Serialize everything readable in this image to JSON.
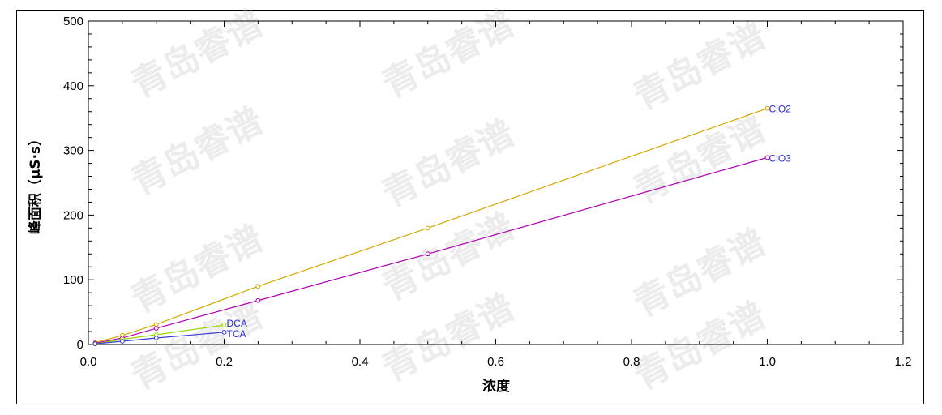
{
  "chart_data": {
    "type": "line",
    "title": "",
    "xlabel": "浓度",
    "ylabel": "峰面积（μS·s）",
    "xlim": [
      0,
      1.2
    ],
    "ylim": [
      0,
      500
    ],
    "xticks": [
      "0.0",
      "0.2",
      "0.4",
      "0.6",
      "0.8",
      "1.0",
      "1.2"
    ],
    "yticks": [
      "0",
      "100",
      "200",
      "300",
      "400",
      "500"
    ],
    "grid": false,
    "series": [
      {
        "name": "ClO2",
        "color": "#d4a800",
        "x": [
          0.01,
          0.05,
          0.1,
          0.25,
          0.5,
          1.0
        ],
        "y": [
          3,
          14,
          31,
          90,
          180,
          365
        ]
      },
      {
        "name": "ClO3",
        "color": "#b000b0",
        "x": [
          0.01,
          0.05,
          0.1,
          0.25,
          0.5,
          1.0
        ],
        "y": [
          2,
          10,
          25,
          68,
          140,
          289
        ]
      },
      {
        "name": "DCA",
        "color": "#99d600",
        "x": [
          0.01,
          0.05,
          0.1,
          0.2
        ],
        "y": [
          1,
          8,
          15,
          30
        ]
      },
      {
        "name": "TCA",
        "color": "#3b3bd6",
        "x": [
          0.01,
          0.05,
          0.1,
          0.2
        ],
        "y": [
          1,
          5,
          10,
          19
        ]
      }
    ]
  },
  "watermark": "青岛睿谱"
}
